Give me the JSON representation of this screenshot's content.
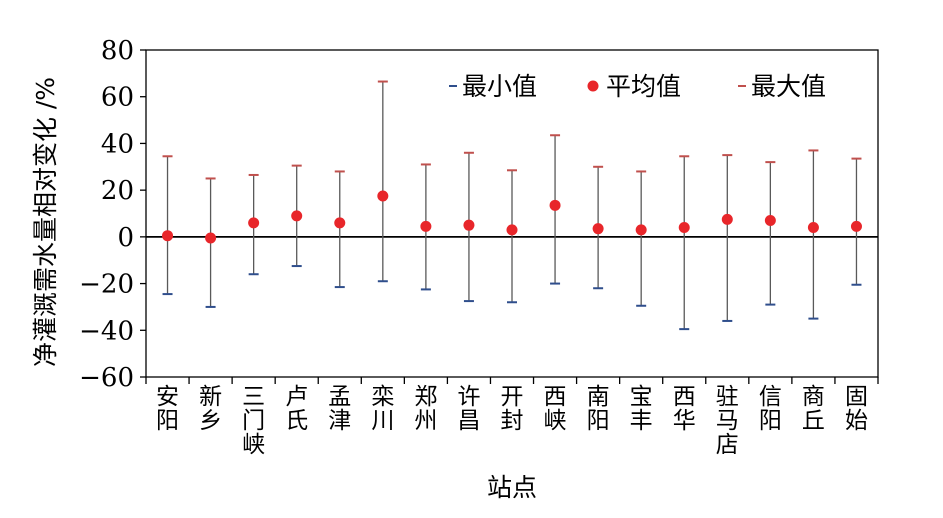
{
  "chart_data": {
    "type": "scatter",
    "xlabel": "站点",
    "ylabel": "净灌溉需水量相对变化 /%",
    "ylim": [
      -60,
      80
    ],
    "yticks": [
      "80",
      "60",
      "40",
      "20",
      "0",
      "−20",
      "−40",
      "−60"
    ],
    "ytick_values": [
      80,
      60,
      40,
      20,
      0,
      -20,
      -40,
      -60
    ],
    "categories": [
      "安阳",
      "新乡",
      "三门峡",
      "卢氏",
      "孟津",
      "栾川",
      "郑州",
      "许昌",
      "开封",
      "西峡",
      "南阳",
      "宝丰",
      "西华",
      "驻马店",
      "信阳",
      "商丘",
      "固始"
    ],
    "series": [
      {
        "name": "最小值",
        "values": [
          -24.5,
          -30,
          -16,
          -12.5,
          -21.5,
          -19,
          -22.5,
          -27.5,
          -28,
          -20,
          -22,
          -29.5,
          -39.5,
          -36,
          -29,
          -35,
          -20.5
        ]
      },
      {
        "name": "平均值",
        "values": [
          0.5,
          -0.5,
          6,
          9,
          6,
          17.5,
          4.5,
          5,
          3,
          13.5,
          3.5,
          3,
          4,
          7.5,
          7,
          4,
          4.5
        ]
      },
      {
        "name": "最大值",
        "values": [
          34.5,
          25,
          26.5,
          30.5,
          28,
          66.5,
          31,
          36,
          28.5,
          43.5,
          30,
          28,
          34.5,
          35,
          32,
          37,
          33.5
        ]
      }
    ],
    "legend_position": "top-right",
    "grid": false,
    "colors": {
      "min": "#2f4e8c",
      "mean": "#e8262a",
      "max": "#c0504d",
      "whisker": "#595959",
      "axis": "#000000"
    }
  }
}
